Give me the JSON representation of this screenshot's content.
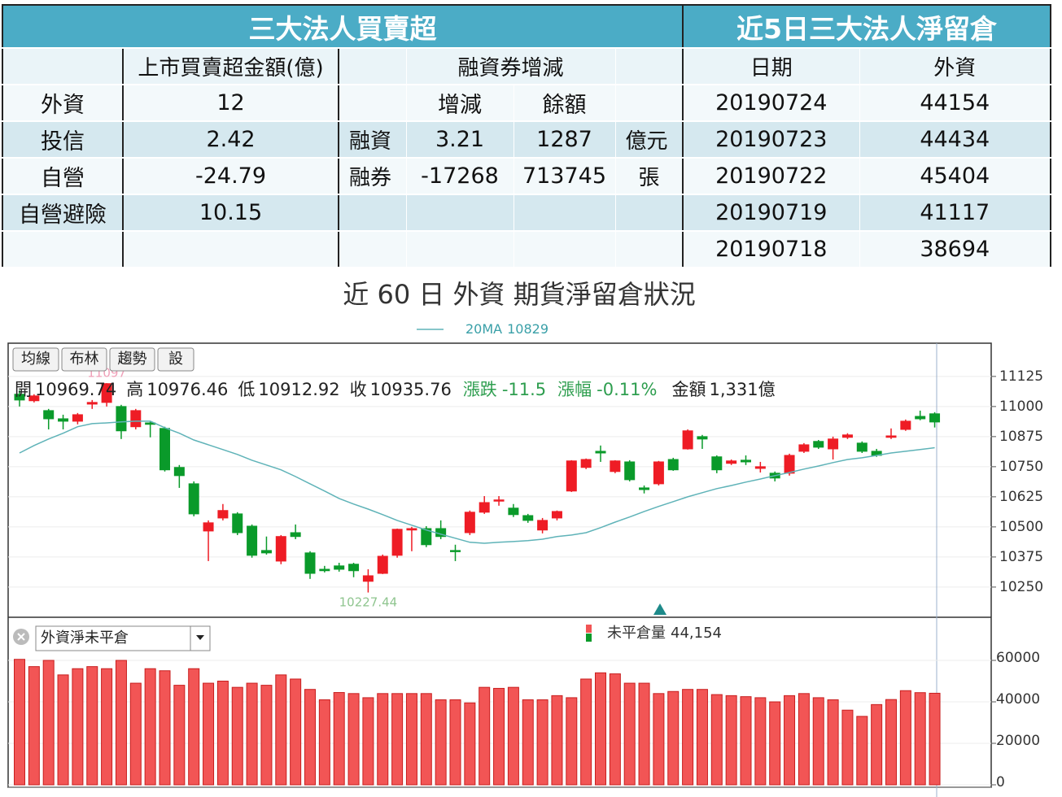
{
  "institutional": {
    "title": "三大法人買賣超",
    "amount_header": "上市買賣超金額(億)",
    "margin_header": "融資券增減",
    "change_header": "增減",
    "balance_header": "餘額",
    "investors": [
      {
        "name": "外資",
        "amount": 12
      },
      {
        "name": "投信",
        "amount": 2.42
      },
      {
        "name": "自營",
        "amount": -24.79
      },
      {
        "name": "自營避險",
        "amount": 10.15
      }
    ],
    "margin": [
      {
        "name": "融資",
        "change": 3.21,
        "balance": 1287,
        "unit": "億元"
      },
      {
        "name": "融券",
        "change": -17268,
        "balance": 713745,
        "unit": "張"
      }
    ]
  },
  "net_position": {
    "title": "近5日三大法人淨留倉",
    "headers": [
      "日期",
      "外資"
    ],
    "rows": [
      [
        "20190724",
        44154
      ],
      [
        "20190723",
        44434
      ],
      [
        "20190722",
        45404
      ],
      [
        "20190719",
        41117
      ],
      [
        "20190718",
        38694
      ]
    ]
  },
  "chart_title": "近 60 日 外資 期貨淨留倉狀況",
  "toolbar": [
    "均線",
    "布林",
    "趨勢",
    "設"
  ],
  "chart_data": [
    {
      "type": "candlestick",
      "up_color": "#ee1c25",
      "down_color": "#0a9a2a",
      "info_labels": {
        "open": "開",
        "high": "高",
        "low": "低",
        "close": "收",
        "change": "漲跌",
        "change_pct": "漲幅",
        "amount": "金額"
      },
      "change": -11.5,
      "change_pct_label": "-0.11%",
      "amount_label": "1,331億",
      "open": [
        11051,
        11024,
        10983,
        10949,
        10939,
        11010,
        11017,
        11000,
        10916,
        10932,
        10909,
        10747,
        10679,
        10483,
        10537,
        10554,
        10503,
        10402,
        10358,
        10476,
        10392,
        10324,
        10338,
        10345,
        10274,
        10307,
        10382,
        10487,
        10493,
        10493,
        10402,
        10476,
        10561,
        10608,
        10578,
        10547,
        10487,
        10537,
        10649,
        10747,
        10814,
        10730,
        10770,
        10662,
        10679,
        10780,
        10824,
        10875,
        10791,
        10764,
        10777,
        10743,
        10723,
        10723,
        10814,
        10855,
        10824,
        10872,
        10848,
        10814,
        10872,
        10905,
        10959,
        10969.74
      ],
      "high": [
        11068,
        11051,
        10990,
        10966,
        10973,
        11027,
        11097,
        11007,
        10990,
        10939,
        10916,
        10757,
        10689,
        10527,
        10595,
        10561,
        10510,
        10460,
        10466,
        10510,
        10399,
        10338,
        10351,
        10351,
        10324,
        10385,
        10493,
        10500,
        10503,
        10527,
        10426,
        10568,
        10628,
        10628,
        10595,
        10554,
        10537,
        10568,
        10777,
        10784,
        10838,
        10777,
        10777,
        10672,
        10774,
        10787,
        10905,
        10882,
        10797,
        10780,
        10797,
        10770,
        10730,
        10804,
        10848,
        10861,
        10875,
        10889,
        10855,
        10824,
        10909,
        10946,
        10983,
        10976.46
      ],
      "low": [
        11000,
        11017,
        10905,
        10905,
        10926,
        10990,
        11000,
        10865,
        10905,
        10872,
        10730,
        10662,
        10544,
        10358,
        10527,
        10466,
        10372,
        10385,
        10345,
        10449,
        10284,
        10311,
        10314,
        10291,
        10227.44,
        10304,
        10372,
        10399,
        10416,
        10449,
        10358,
        10466,
        10554,
        10588,
        10541,
        10517,
        10473,
        10527,
        10645,
        10740,
        10770,
        10723,
        10689,
        10639,
        10672,
        10733,
        10821,
        10824,
        10723,
        10757,
        10757,
        10726,
        10689,
        10713,
        10807,
        10824,
        10780,
        10865,
        10807,
        10791,
        10865,
        10899,
        10943,
        10912.92
      ],
      "close": [
        11027,
        11044,
        10949,
        10939,
        10966,
        11017,
        11095,
        10899,
        10983,
        10926,
        10737,
        10713,
        10554,
        10517,
        10568,
        10476,
        10382,
        10392,
        10460,
        10460,
        10307,
        10318,
        10324,
        10318,
        10297,
        10378,
        10490,
        10493,
        10426,
        10460,
        10399,
        10561,
        10601,
        10612,
        10551,
        10527,
        10527,
        10564,
        10774,
        10780,
        10807,
        10774,
        10696,
        10655,
        10770,
        10737,
        10899,
        10865,
        10737,
        10774,
        10770,
        10750,
        10703,
        10797,
        10841,
        10831,
        10865,
        10882,
        10814,
        10797,
        10878,
        10939,
        10949,
        10935.76
      ],
      "ma": {
        "name": "20MA",
        "color": "#5fb3b8",
        "values": [
          10807,
          10838,
          10865,
          10889,
          10916,
          10929,
          10932,
          10936,
          10939,
          10939,
          10912,
          10889,
          10861,
          10841,
          10821,
          10801,
          10777,
          10757,
          10737,
          10709,
          10679,
          10649,
          10618,
          10595,
          10574,
          10551,
          10527,
          10507,
          10487,
          10470,
          10453,
          10436,
          10432,
          10436,
          10439,
          10443,
          10449,
          10460,
          10466,
          10476,
          10497,
          10520,
          10541,
          10564,
          10585,
          10605,
          10625,
          10642,
          10659,
          10672,
          10686,
          10699,
          10713,
          10726,
          10740,
          10753,
          10767,
          10780,
          10787,
          10797,
          10807,
          10814,
          10821,
          10829
        ]
      },
      "ylim": [
        10128,
        11263
      ],
      "yticks": [
        11125,
        11000,
        10875,
        10750,
        10625,
        10500,
        10375,
        10250
      ],
      "grid": true
    },
    {
      "type": "bar",
      "selector": "外資淨未平倉",
      "series": [
        {
          "name": "未平倉量",
          "color": "#f25555",
          "latest_label": "44,154",
          "values": [
            60500,
            57000,
            60000,
            53000,
            56000,
            57000,
            56000,
            60000,
            49000,
            56000,
            55000,
            48000,
            56000,
            49000,
            50000,
            47000,
            49000,
            48000,
            53000,
            51000,
            46000,
            41000,
            44500,
            44000,
            42000,
            44000,
            44000,
            44000,
            44000,
            41000,
            41000,
            39500,
            47000,
            46500,
            47000,
            41000,
            41000,
            43000,
            42000,
            51000,
            54000,
            53500,
            49000,
            49000,
            44000,
            45000,
            46000,
            46000,
            43500,
            43000,
            42500,
            42000,
            40000,
            43000,
            44000,
            42000,
            41000,
            36000,
            33000,
            38694,
            41117,
            45404,
            44434,
            44154
          ]
        }
      ],
      "ylim": [
        0,
        80400
      ],
      "yticks": [
        0,
        20000,
        40000,
        60000
      ],
      "grid": true
    }
  ]
}
